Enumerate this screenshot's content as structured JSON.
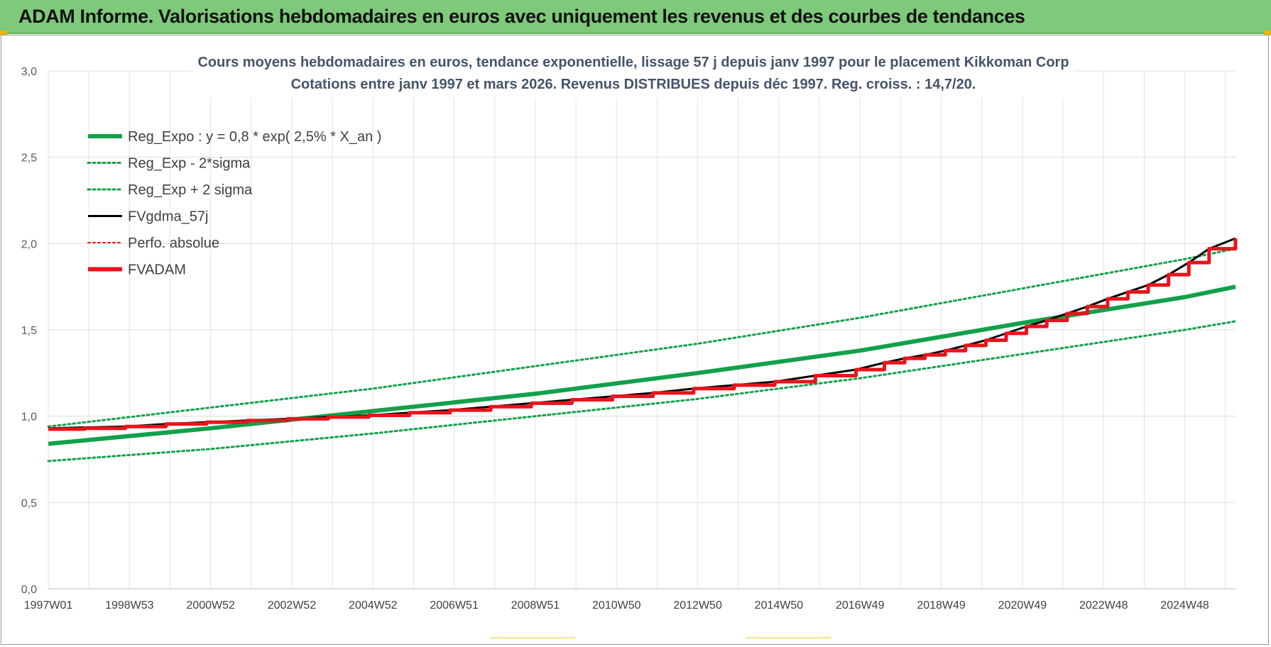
{
  "header": {
    "title": "ADAM Informe. Valorisations hebdomadaires en euros avec uniquement les revenus et des courbes de tendances"
  },
  "chart_data": {
    "type": "line",
    "title": "Cours moyens hebdomadaires en euros, tendance exponentielle, lissage 57 j depuis janv 1997  pour le placement Kikkoman Corp",
    "subtitle": "Cotations entre janv 1997 et mars 2026. Revenus DISTRIBUES depuis déc 1997. Reg. croiss. : 14,7/20.",
    "xlabel": "",
    "ylabel": "",
    "xlim": [
      1997.0,
      2026.25
    ],
    "ylim": [
      0,
      3
    ],
    "y_ticks": [
      "0,0",
      "0,5",
      "1,0",
      "1,5",
      "2,0",
      "2,5",
      "3,0"
    ],
    "x_ticks": [
      {
        "label": "1997W01",
        "x": 1997.0
      },
      {
        "label": "1998W53",
        "x": 1999.0
      },
      {
        "label": "2000W52",
        "x": 2001.0
      },
      {
        "label": "2002W52",
        "x": 2003.0
      },
      {
        "label": "2004W52",
        "x": 2005.0
      },
      {
        "label": "2006W51",
        "x": 2007.0
      },
      {
        "label": "2008W51",
        "x": 2009.0
      },
      {
        "label": "2010W50",
        "x": 2011.0
      },
      {
        "label": "2012W50",
        "x": 2013.0
      },
      {
        "label": "2014W50",
        "x": 2015.0
      },
      {
        "label": "2016W49",
        "x": 2017.0
      },
      {
        "label": "2018W49",
        "x": 2019.0
      },
      {
        "label": "2020W49",
        "x": 2021.0
      },
      {
        "label": "2022W48",
        "x": 2023.0
      },
      {
        "label": "2024W48",
        "x": 2025.0
      }
    ],
    "grid": true,
    "legend_position": "top-left",
    "series": [
      {
        "name": "Reg_Expo : y = 0,8 * exp( 2,5% *  X_an )",
        "color": "#12a14a",
        "style": "solid",
        "x": [
          1997.0,
          2001.0,
          2005.0,
          2009.0,
          2013.0,
          2017.0,
          2021.0,
          2025.0,
          2026.25
        ],
        "y": [
          0.84,
          0.93,
          1.03,
          1.13,
          1.25,
          1.38,
          1.54,
          1.69,
          1.75
        ]
      },
      {
        "name": "Reg_Exp - 2*sigma",
        "color": "#12a14a",
        "style": "dotted",
        "x": [
          1997.0,
          2001.0,
          2005.0,
          2009.0,
          2013.0,
          2017.0,
          2021.0,
          2025.0,
          2026.25
        ],
        "y": [
          0.74,
          0.81,
          0.9,
          1.0,
          1.1,
          1.22,
          1.36,
          1.5,
          1.55
        ]
      },
      {
        "name": "Reg_Exp + 2 sigma",
        "color": "#12a14a",
        "style": "dotted",
        "x": [
          1997.0,
          2001.0,
          2005.0,
          2009.0,
          2013.0,
          2017.0,
          2021.0,
          2025.0,
          2026.25
        ],
        "y": [
          0.94,
          1.05,
          1.16,
          1.29,
          1.42,
          1.57,
          1.74,
          1.91,
          1.97
        ]
      },
      {
        "name": "FVgdma_57j",
        "color": "#000000",
        "style": "solid",
        "x": [
          1997.0,
          1997.9,
          1998.9,
          1999.9,
          2000.9,
          2001.9,
          2002.9,
          2003.9,
          2004.9,
          2005.9,
          2006.9,
          2007.9,
          2008.9,
          2009.9,
          2010.9,
          2011.9,
          2012.9,
          2013.9,
          2014.9,
          2015.9,
          2016.9,
          2017.6,
          2018.1,
          2018.6,
          2019.1,
          2019.6,
          2020.1,
          2020.6,
          2021.1,
          2021.6,
          2022.1,
          2022.6,
          2023.1,
          2023.6,
          2024.1,
          2024.6,
          2025.1,
          2025.6,
          2026.25
        ],
        "y": [
          0.93,
          0.935,
          0.94,
          0.955,
          0.965,
          0.975,
          0.985,
          0.995,
          1.005,
          1.02,
          1.035,
          1.055,
          1.075,
          1.095,
          1.115,
          1.135,
          1.16,
          1.18,
          1.2,
          1.235,
          1.27,
          1.31,
          1.335,
          1.355,
          1.38,
          1.41,
          1.44,
          1.48,
          1.52,
          1.555,
          1.595,
          1.635,
          1.68,
          1.72,
          1.76,
          1.82,
          1.89,
          1.97,
          2.03
        ]
      },
      {
        "name": "Perfo. absolue",
        "color": "#e8141c",
        "style": "dotted",
        "x": [],
        "y": []
      },
      {
        "name": "FVADAM",
        "color": "#e8141c",
        "style": "step",
        "x": [
          1997.0,
          1997.9,
          1998.9,
          1999.9,
          2000.9,
          2001.9,
          2002.9,
          2003.9,
          2004.9,
          2005.9,
          2006.9,
          2007.9,
          2008.9,
          2009.9,
          2010.9,
          2011.9,
          2012.9,
          2013.9,
          2014.9,
          2015.9,
          2016.9,
          2017.6,
          2018.1,
          2018.6,
          2019.1,
          2019.6,
          2020.1,
          2020.6,
          2021.1,
          2021.6,
          2022.1,
          2022.6,
          2023.1,
          2023.6,
          2024.1,
          2024.6,
          2025.1,
          2025.6,
          2026.25
        ],
        "y": [
          0.925,
          0.93,
          0.94,
          0.955,
          0.965,
          0.975,
          0.985,
          0.995,
          1.005,
          1.02,
          1.035,
          1.055,
          1.075,
          1.095,
          1.115,
          1.135,
          1.16,
          1.18,
          1.2,
          1.235,
          1.27,
          1.31,
          1.335,
          1.355,
          1.38,
          1.41,
          1.44,
          1.48,
          1.52,
          1.555,
          1.595,
          1.635,
          1.68,
          1.72,
          1.76,
          1.82,
          1.89,
          1.97,
          2.03
        ]
      }
    ]
  }
}
